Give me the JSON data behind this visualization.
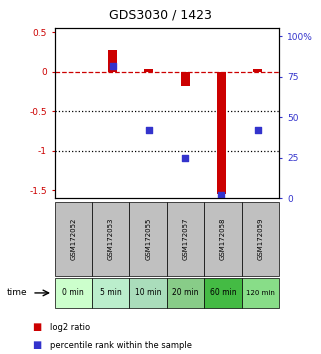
{
  "title": "GDS3030 / 1423",
  "samples": [
    "GSM172052",
    "GSM172053",
    "GSM172055",
    "GSM172057",
    "GSM172058",
    "GSM172059"
  ],
  "time_labels": [
    "0 min",
    "5 min",
    "10 min",
    "20 min",
    "60 min",
    "120 min"
  ],
  "log2_ratio": [
    0.0,
    0.27,
    0.04,
    -0.18,
    -1.55,
    0.04
  ],
  "percentile_rank": [
    null,
    82,
    42,
    25,
    2,
    42
  ],
  "ylim_left": [
    -1.6,
    0.55
  ],
  "ylim_right": [
    0,
    105
  ],
  "yticks_left": [
    0.5,
    0,
    -0.5,
    -1,
    -1.5
  ],
  "yticks_right": [
    100,
    75,
    50,
    25,
    0
  ],
  "ytick_labels_left": [
    "0.5",
    "0",
    "-0.5",
    "-1",
    "-1.5"
  ],
  "ytick_labels_right": [
    "100%",
    "75",
    "50",
    "25",
    "0"
  ],
  "bar_color": "#cc0000",
  "dot_color": "#3333cc",
  "dashed_line_color": "#cc0000",
  "dotted_line_color": "#000000",
  "sample_bg_color": "#c0c0c0",
  "time_bg_colors": [
    "#ccffcc",
    "#bbeecc",
    "#aaddbb",
    "#88cc88",
    "#44bb44",
    "#88dd88"
  ],
  "legend_bar_label": "log2 ratio",
  "legend_dot_label": "percentile rank within the sample",
  "bar_width": 0.25,
  "x_positions": [
    0,
    1,
    2,
    3,
    4,
    5
  ]
}
